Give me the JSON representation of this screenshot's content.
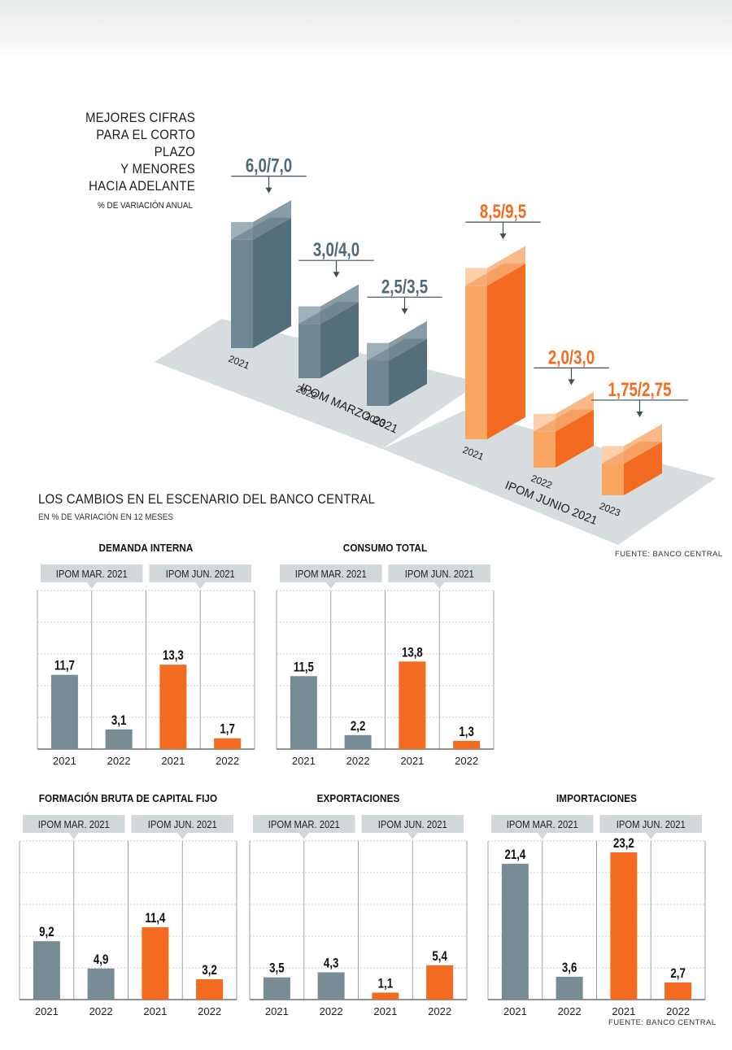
{
  "intro": {
    "lines": [
      "MEJORES CIFRAS",
      "PARA EL CORTO PLAZO",
      "Y MENORES",
      "HACIA ADELANTE"
    ],
    "subtitle": "% DE VARIACIÓN ANUAL"
  },
  "section": {
    "title": "LOS CAMBIOS EN EL ESCENARIO DEL BANCO CENTRAL",
    "subtitle": "EN % DE VARIACIÓN EN 12 MESES"
  },
  "sources": {
    "top": "FUENTE: BANCO CENTRAL",
    "bottom": "FUENTE: BANCO CENTRAL"
  },
  "colors": {
    "march": "#546f7c",
    "march_range": "#9db0b9",
    "june": "#f26b21",
    "june_range": "#fbb380",
    "floor": "#d7dcde",
    "bar_gray": "#788c96",
    "bar_orange": "#f26b21",
    "header_gray": "#d2d7da",
    "grid": "#9aa5aa"
  },
  "chart_data": [
    {
      "type": "bar",
      "title": "MEJORES CIFRAS PARA EL CORTO PLAZO Y MENORES HACIA ADELANTE",
      "ylabel": "% DE VARIACIÓN ANUAL",
      "groups": [
        {
          "name": "IPOM MARZO 2021",
          "categories": [
            "2021",
            "2022",
            "2023"
          ],
          "low": [
            6.0,
            3.0,
            2.5
          ],
          "high": [
            7.0,
            4.0,
            3.5
          ],
          "labels": [
            "6,0/7,0",
            "3,0/4,0",
            "2,5/3,5"
          ]
        },
        {
          "name": "IPOM JUNIO 2021",
          "categories": [
            "2021",
            "2022",
            "2023"
          ],
          "low": [
            8.5,
            2.0,
            1.75
          ],
          "high": [
            9.5,
            3.0,
            2.75
          ],
          "labels": [
            "8,5/9,5",
            "2,0/3,0",
            "1,75/2,75"
          ]
        }
      ]
    },
    {
      "type": "bar",
      "title": "DEMANDA INTERNA",
      "groups": [
        "IPOM MAR. 2021",
        "IPOM JUN. 2021"
      ],
      "categories": [
        "2021",
        "2022",
        "2021",
        "2022"
      ],
      "values": [
        11.7,
        3.1,
        13.3,
        1.7
      ],
      "labels": [
        "11,7",
        "3,1",
        "13,3",
        "1,7"
      ],
      "ylim": [
        0,
        25
      ]
    },
    {
      "type": "bar",
      "title": "CONSUMO TOTAL",
      "groups": [
        "IPOM MAR. 2021",
        "IPOM JUN. 2021"
      ],
      "categories": [
        "2021",
        "2022",
        "2021",
        "2022"
      ],
      "values": [
        11.5,
        2.2,
        13.8,
        1.3
      ],
      "labels": [
        "11,5",
        "2,2",
        "13,8",
        "1,3"
      ],
      "ylim": [
        0,
        25
      ]
    },
    {
      "type": "bar",
      "title": "FORMACIÓN BRUTA DE CAPITAL FIJO",
      "groups": [
        "IPOM MAR. 2021",
        "IPOM JUN. 2021"
      ],
      "categories": [
        "2021",
        "2022",
        "2021",
        "2022"
      ],
      "values": [
        9.2,
        4.9,
        11.4,
        3.2
      ],
      "labels": [
        "9,2",
        "4,9",
        "11,4",
        "3,2"
      ],
      "ylim": [
        0,
        25
      ]
    },
    {
      "type": "bar",
      "title": "EXPORTACIONES",
      "groups": [
        "IPOM MAR. 2021",
        "IPOM JUN. 2021"
      ],
      "categories": [
        "2021",
        "2022",
        "2021",
        "2022"
      ],
      "values": [
        3.5,
        4.3,
        1.1,
        5.4
      ],
      "labels": [
        "3,5",
        "4,3",
        "1,1",
        "5,4"
      ],
      "ylim": [
        0,
        25
      ]
    },
    {
      "type": "bar",
      "title": "IMPORTACIONES",
      "groups": [
        "IPOM MAR. 2021",
        "IPOM JUN. 2021"
      ],
      "categories": [
        "2021",
        "2022",
        "2021",
        "2022"
      ],
      "values": [
        21.4,
        3.6,
        23.2,
        2.7
      ],
      "labels": [
        "21,4",
        "3,6",
        "23,2",
        "2,7"
      ],
      "ylim": [
        0,
        25
      ]
    }
  ]
}
